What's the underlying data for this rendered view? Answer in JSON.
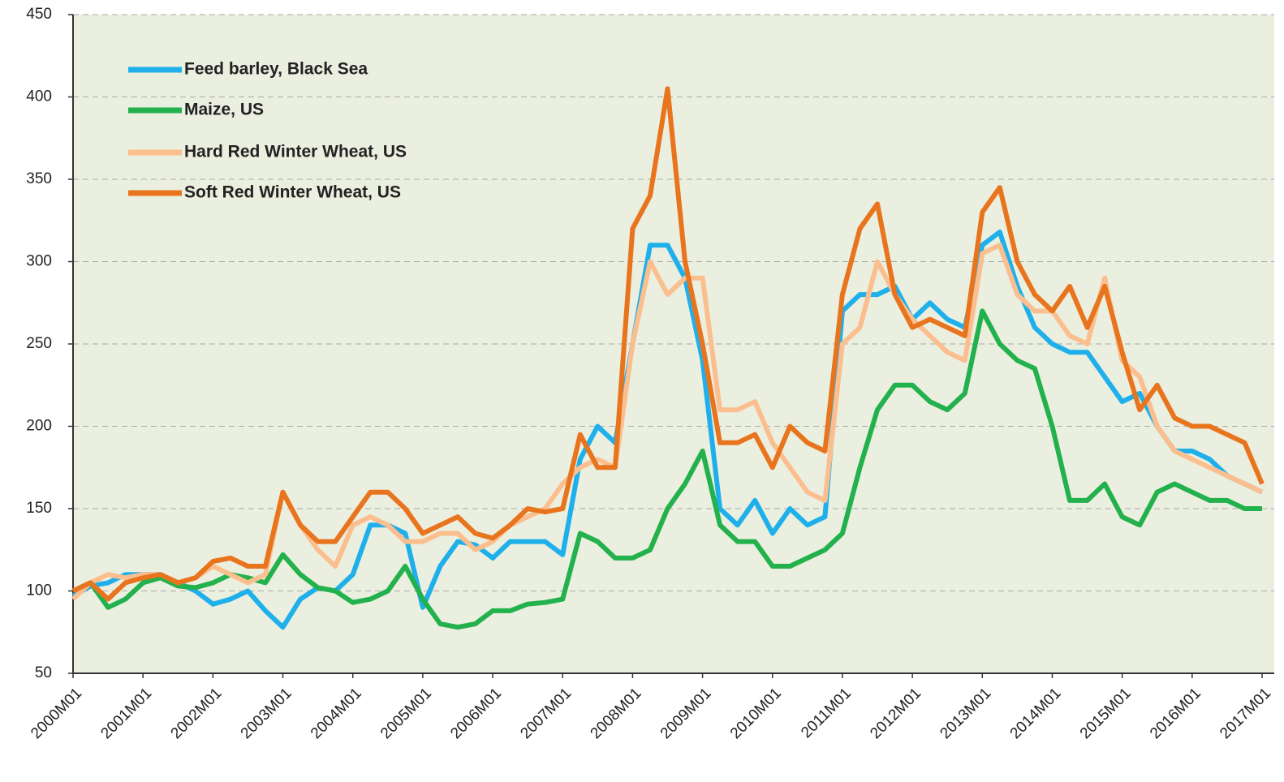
{
  "chart_data": {
    "type": "line",
    "categories": [
      "2000M01",
      null,
      null,
      null,
      "2001M01",
      null,
      null,
      null,
      "2002M01",
      null,
      null,
      null,
      "2003M01",
      null,
      null,
      null,
      "2004M01",
      null,
      null,
      null,
      "2005M01",
      null,
      null,
      null,
      "2006M01",
      null,
      null,
      null,
      "2007M01",
      null,
      null,
      null,
      "2008M01",
      null,
      null,
      null,
      "2009M01",
      null,
      null,
      null,
      "2010M01",
      null,
      null,
      null,
      "2011M01",
      null,
      null,
      null,
      "2012M01",
      null,
      null,
      null,
      "2013M01",
      null,
      null,
      null,
      "2014M01",
      null,
      null,
      null,
      "2015M01",
      null,
      null,
      null,
      "2016M01",
      null,
      null,
      null,
      "2017M01"
    ],
    "series": [
      {
        "name": "Feed barley, Black Sea",
        "color": "#1fb0ec",
        "values": [
          97,
          103,
          105,
          110,
          110,
          110,
          105,
          100,
          92,
          95,
          100,
          88,
          78,
          95,
          102,
          100,
          110,
          140,
          140,
          135,
          90,
          115,
          130,
          128,
          120,
          130,
          130,
          130,
          122,
          180,
          200,
          190,
          250,
          310,
          310,
          290,
          240,
          150,
          140,
          155,
          135,
          150,
          140,
          145,
          270,
          280,
          280,
          285,
          265,
          275,
          265,
          260,
          310,
          318,
          285,
          260,
          250,
          245,
          245,
          230,
          215,
          220,
          200,
          185,
          185,
          180,
          170,
          165,
          160
        ]
      },
      {
        "name": "Maize, US",
        "color": "#22b14c",
        "values": [
          100,
          105,
          90,
          95,
          105,
          108,
          103,
          102,
          105,
          110,
          108,
          105,
          122,
          110,
          102,
          100,
          93,
          95,
          100,
          115,
          95,
          80,
          78,
          80,
          88,
          88,
          92,
          93,
          95,
          135,
          130,
          120,
          120,
          125,
          150,
          165,
          185,
          140,
          130,
          130,
          115,
          115,
          120,
          125,
          135,
          175,
          210,
          225,
          225,
          215,
          210,
          220,
          270,
          250,
          240,
          235,
          200,
          155,
          155,
          165,
          145,
          140,
          160,
          165,
          160,
          155,
          155,
          150,
          150
        ]
      },
      {
        "name": "Hard Red Winter Wheat, US",
        "color": "#fbbf8f",
        "values": [
          95,
          105,
          110,
          108,
          110,
          110,
          105,
          108,
          115,
          110,
          105,
          110,
          160,
          140,
          125,
          115,
          140,
          145,
          140,
          130,
          130,
          135,
          135,
          125,
          130,
          140,
          145,
          150,
          165,
          175,
          180,
          175,
          250,
          300,
          280,
          290,
          290,
          210,
          210,
          215,
          190,
          175,
          160,
          155,
          250,
          260,
          300,
          280,
          265,
          255,
          245,
          240,
          305,
          310,
          280,
          270,
          270,
          255,
          250,
          290,
          240,
          230,
          200,
          185,
          180,
          175,
          170,
          165,
          160
        ]
      },
      {
        "name": "Soft Red Winter Wheat, US",
        "color": "#e8741e",
        "values": [
          100,
          105,
          95,
          105,
          108,
          110,
          105,
          108,
          118,
          120,
          115,
          115,
          160,
          140,
          130,
          130,
          145,
          160,
          160,
          150,
          135,
          140,
          145,
          135,
          132,
          140,
          150,
          148,
          150,
          195,
          175,
          175,
          320,
          340,
          405,
          300,
          250,
          190,
          190,
          195,
          175,
          200,
          190,
          185,
          280,
          320,
          335,
          280,
          260,
          265,
          260,
          255,
          330,
          345,
          300,
          280,
          270,
          285,
          260,
          285,
          245,
          210,
          225,
          205,
          200,
          200,
          195,
          190,
          165
        ]
      }
    ],
    "ylim": [
      50,
      450
    ],
    "yticks": [
      50,
      100,
      150,
      200,
      250,
      300,
      350,
      400,
      450
    ],
    "grid": true,
    "legend": "upper left"
  }
}
